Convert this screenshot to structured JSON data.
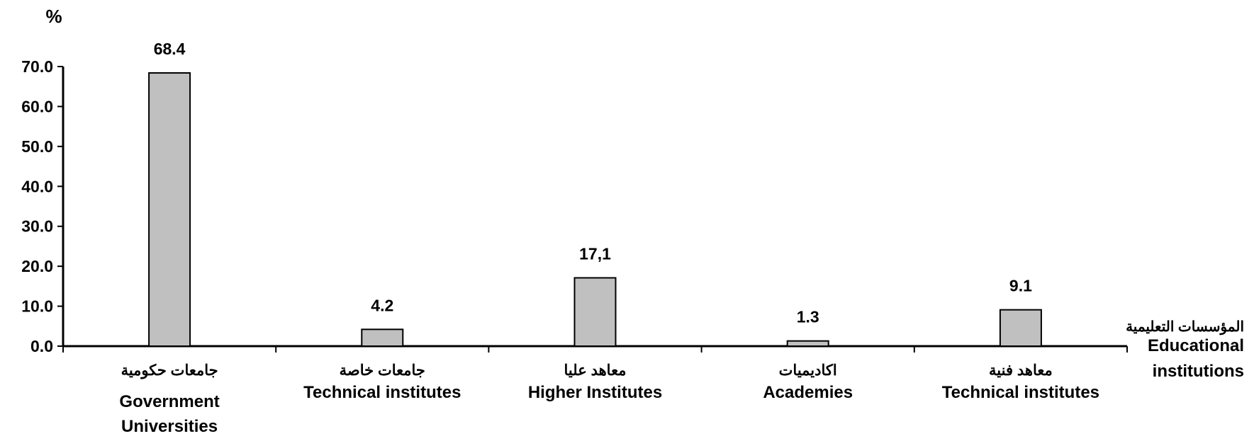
{
  "chart_data": {
    "type": "bar",
    "ylabel": "%",
    "xlabel_arabic": "المؤسسات التعليمية",
    "xlabel_english": [
      "Educational",
      "institutions"
    ],
    "ylim": [
      0,
      70
    ],
    "yticks": [
      "0.0",
      "10.0",
      "20.0",
      "30.0",
      "40.0",
      "50.0",
      "60.0",
      "70.0"
    ],
    "grid": false,
    "colors": {
      "bar_fill": "#c0c0c0",
      "bar_stroke": "#000000"
    },
    "categories": [
      {
        "arabic": "جامعات حكومية",
        "english": [
          "Government",
          "Universities"
        ],
        "value": 68.4,
        "value_label": "68.4"
      },
      {
        "arabic": "جامعات خاصة",
        "english": [
          "Technical institutes"
        ],
        "value": 4.2,
        "value_label": "4.2"
      },
      {
        "arabic": "معاهد عليا",
        "english": [
          "Higher Institutes"
        ],
        "value": 17.1,
        "value_label": "17,1"
      },
      {
        "arabic": "اكاديميات",
        "english": [
          "Academies"
        ],
        "value": 1.3,
        "value_label": "1.3"
      },
      {
        "arabic": "معاهد فنية",
        "english": [
          "Technical institutes"
        ],
        "value": 9.1,
        "value_label": "9.1"
      }
    ]
  }
}
